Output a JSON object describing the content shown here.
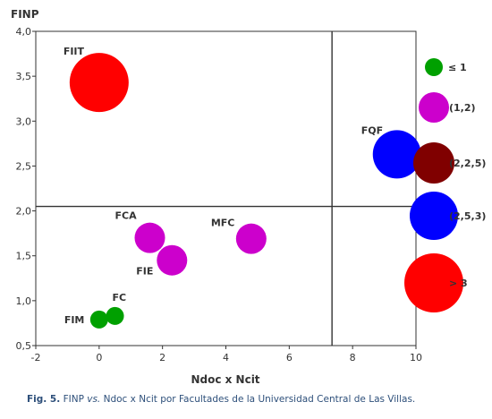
{
  "chart_data": {
    "type": "scatter",
    "title": "",
    "xlabel": "Ndoc x Ncit",
    "ylabel": "FINP",
    "xlim": [
      -2,
      10
    ],
    "ylim": [
      0.5,
      4.0
    ],
    "x_ticks": [
      "-2",
      "0",
      "2",
      "4",
      "6",
      "8",
      "10"
    ],
    "y_ticks": [
      "0,5",
      "1,0",
      "1,5",
      "2,0",
      "2,5",
      "3,0",
      "3,5",
      "4,0"
    ],
    "x_tick_values": [
      -2,
      0,
      2,
      4,
      6,
      8,
      10
    ],
    "y_tick_values": [
      0.5,
      1.0,
      1.5,
      2.0,
      2.5,
      3.0,
      3.5,
      4.0
    ],
    "reference_lines": {
      "x": 7.35,
      "y": 2.05
    },
    "grid": false,
    "legend_position": "right",
    "points": [
      {
        "label": "FIIT",
        "x": 0.0,
        "y": 3.43,
        "class": "> 3",
        "color": "#ff0000",
        "size_class": 5
      },
      {
        "label": "FQF",
        "x": 9.4,
        "y": 2.63,
        "class": "(2,5,3)",
        "color": "#0000ff",
        "size_class": 4
      },
      {
        "label": "FCA",
        "x": 1.6,
        "y": 1.7,
        "class": "(1,2)",
        "color": "#cc00cc",
        "size_class": 2
      },
      {
        "label": "MFC",
        "x": 4.8,
        "y": 1.69,
        "class": "(1,2)",
        "color": "#cc00cc",
        "size_class": 2
      },
      {
        "label": "FIE",
        "x": 2.3,
        "y": 1.45,
        "class": "(1,2)",
        "color": "#cc00cc",
        "size_class": 2
      },
      {
        "label": "FC",
        "x": 0.5,
        "y": 0.83,
        "class": "≤ 1",
        "color": "#00a000",
        "size_class": 1
      },
      {
        "label": "FIM",
        "x": 0.0,
        "y": 0.79,
        "class": "≤ 1",
        "color": "#00a000",
        "size_class": 1
      }
    ],
    "legend": [
      {
        "label": "≤  1",
        "color": "#00a000",
        "size_class": 1
      },
      {
        "label": "(1,2)",
        "color": "#cc00cc",
        "size_class": 2
      },
      {
        "label": "(2,2,5)",
        "color": "#800000",
        "size_class": 3
      },
      {
        "label": "(2,5,3)",
        "color": "#0000ff",
        "size_class": 4
      },
      {
        "label": "> 3",
        "color": "#ff0000",
        "size_class": 5
      }
    ]
  },
  "caption": {
    "fig_label": "Fig. 5.",
    "text_pre": " FINP ",
    "vs": "vs.",
    "text_post": " Ndoc x Ncit por Facultades de la Universidad Central de Las Villas."
  }
}
